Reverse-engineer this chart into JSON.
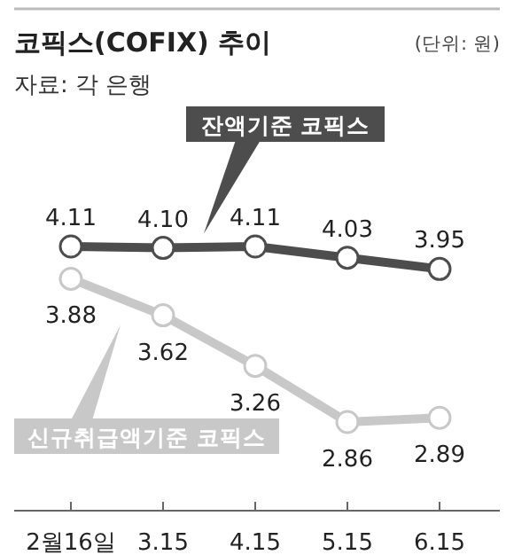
{
  "chart_data": {
    "type": "line",
    "title": "코픽스(COFIX) 추이",
    "subtitle": "(단위: 원)",
    "annotations": [
      "자료: 각 은행"
    ],
    "categories": [
      "2월16일",
      "3.15",
      "4.15",
      "5.15",
      "6.15"
    ],
    "marker": "circle",
    "line_style": "solid",
    "grid": false,
    "series": [
      {
        "name": "잔액기준 코픽스",
        "color": "#4d4d4d",
        "values": [
          4.11,
          4.1,
          4.11,
          4.03,
          3.95
        ],
        "value_labels": [
          "4.11",
          "4.10",
          "4.11",
          "4.03",
          "3.95"
        ]
      },
      {
        "name": "신규취급액기준 코픽스",
        "color": "#c8c8c8",
        "values": [
          3.88,
          3.62,
          3.26,
          2.86,
          2.89
        ],
        "value_labels": [
          "3.88",
          "3.62",
          "3.26",
          "2.86",
          "2.89"
        ]
      }
    ]
  }
}
